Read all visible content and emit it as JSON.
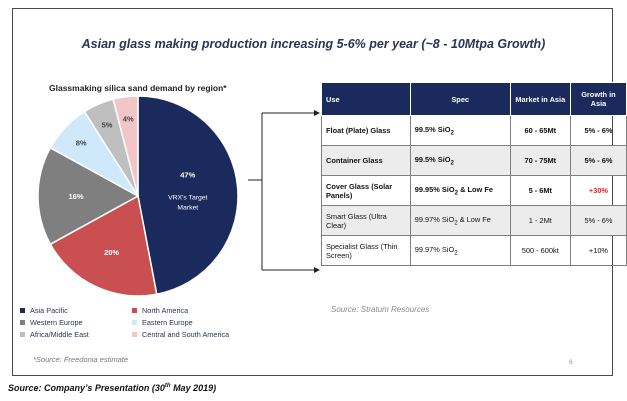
{
  "title": "Asian glass making production increasing 5-6% per year (~8 - 10Mtpa Growth)",
  "chart_data": {
    "type": "pie",
    "title": "Glassmaking silica sand demand by region*",
    "slices": [
      {
        "label": "Asia Pacific",
        "value": 47,
        "display": "47%",
        "color": "#1b2a5c",
        "annotation": "VRX's Target Market"
      },
      {
        "label": "North America",
        "value": 20,
        "display": "20%",
        "color": "#c94f50"
      },
      {
        "label": "Western Europe",
        "value": 16,
        "display": "16%",
        "color": "#7f7f7f"
      },
      {
        "label": "Eastern Europe",
        "value": 8,
        "display": "8%",
        "color": "#cfe9fb"
      },
      {
        "label": "Africa/Middle East",
        "value": 5,
        "display": "5%",
        "color": "#bfbfbf"
      },
      {
        "label": "Central and South America",
        "value": 4,
        "display": "4%",
        "color": "#f2c6c6"
      }
    ],
    "legend_placement": "bottom"
  },
  "pie_source": "*Source: Freedonia estimate",
  "table": {
    "headers": [
      "Use",
      "Spec",
      "Market in Asia",
      "Growth in Asia"
    ],
    "rows": [
      {
        "use": "Float (Plate) Glass",
        "spec_pre": "99.5% SiO",
        "spec_sub": "2",
        "spec_post": "",
        "market": "60 - 65Mt",
        "growth": "5% - 6%"
      },
      {
        "use": "Container Glass",
        "spec_pre": "99.5% SiO",
        "spec_sub": "2",
        "spec_post": "",
        "market": "70 - 75Mt",
        "growth": "5% - 6%"
      },
      {
        "use": "Cover Glass (Solar Panels)",
        "spec_pre": "99.95% SiO",
        "spec_sub": "2",
        "spec_post": " & Low Fe",
        "market": "5 - 6Mt",
        "growth": "+30%"
      },
      {
        "use": "Smart Glass (Ultra Clear)",
        "spec_pre": "99.97% SiO",
        "spec_sub": "2",
        "spec_post": " & Low Fe",
        "market": "1 - 2Mt",
        "growth": "5% - 6%"
      },
      {
        "use": "Specialist Glass (Thin Screen)",
        "spec_pre": "99.97% SiO",
        "spec_sub": "2",
        "spec_post": "",
        "market": "500 - 600kt",
        "growth": "+10%"
      }
    ]
  },
  "table_source": "Source: Stratum Resources",
  "page_number": "6",
  "footer_pre": "Source: Company’s Presentation (30",
  "footer_sup": "th",
  "footer_post": " May 2019)"
}
